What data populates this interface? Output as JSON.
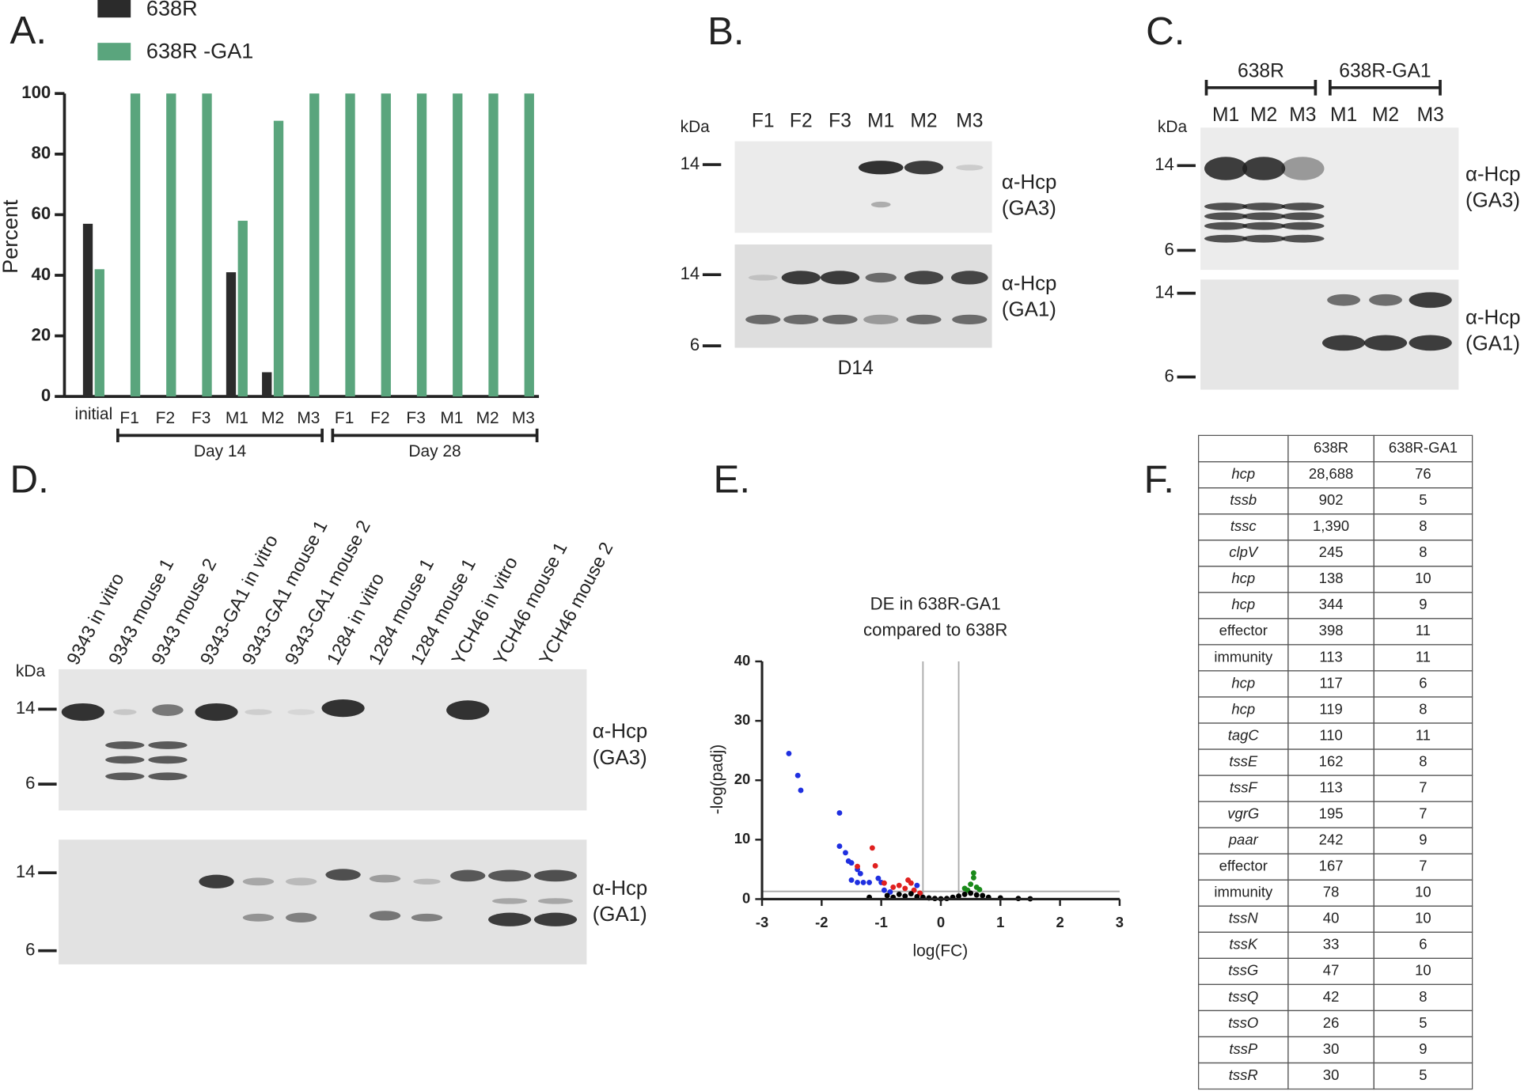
{
  "chart_data": [
    {
      "type": "bar",
      "label": "A.",
      "ylabel": "Percent",
      "categories": [
        "initial",
        "F1",
        "F2",
        "F3",
        "M1",
        "M2",
        "M3",
        "F1",
        "F2",
        "F3",
        "M1",
        "M2",
        "M3"
      ],
      "groups": [
        "Day 14",
        "Day 28"
      ],
      "series": [
        {
          "name": "638R",
          "color": "#2b2b2b",
          "values": [
            57,
            0,
            0,
            0,
            41,
            8,
            0,
            0,
            0,
            0,
            0,
            0,
            0
          ]
        },
        {
          "name": "638R -GA1",
          "color": "#5aa57d",
          "values": [
            42,
            100,
            100,
            100,
            58,
            91,
            100,
            100,
            100,
            100,
            100,
            100,
            100
          ]
        }
      ],
      "ylim": [
        0,
        100
      ],
      "yticks": [
        0,
        20,
        40,
        60,
        80,
        100
      ]
    },
    {
      "type": "scatter",
      "label": "E.",
      "title": "DE in 638R-GA1",
      "subtitle": "compared to 638R",
      "xlabel": "log(FC)",
      "ylabel": "-log(padj)",
      "xlim": [
        -3,
        3
      ],
      "ylim": [
        0,
        40
      ],
      "xticks": [
        -3,
        -2,
        -1,
        0,
        1,
        2,
        3
      ],
      "yticks": [
        0,
        10,
        20,
        30,
        40
      ],
      "vlines": [
        -0.3,
        0.3
      ],
      "hline": 1.3,
      "series": [
        {
          "color": "#1f2fe0",
          "x": [
            -2.55,
            -2.4,
            -2.35,
            -1.7,
            -1.7,
            -1.6,
            -1.55,
            -1.5,
            -1.4,
            -1.35,
            -1.5,
            -1.4,
            -1.3,
            -1.2,
            -1.05,
            -1.0,
            -0.95,
            -0.4,
            -0.85
          ],
          "y": [
            24.5,
            20.8,
            18.3,
            14.5,
            8.9,
            7.8,
            6.4,
            6.1,
            5,
            4.3,
            3.2,
            2.8,
            2.8,
            2.8,
            3.5,
            2.8,
            1.5,
            2.3,
            1.2
          ]
        },
        {
          "color": "#e0201f",
          "x": [
            -1.15,
            -1.1,
            -1.4,
            -0.95,
            -0.8,
            -0.7,
            -0.55,
            -0.5,
            -0.6,
            -0.45,
            -0.35
          ],
          "y": [
            8.6,
            5.6,
            5.5,
            2.7,
            2,
            2.3,
            3.2,
            2.7,
            1.8,
            1.5,
            1
          ]
        },
        {
          "color": "#1a8a1a",
          "x": [
            0.55,
            0.55,
            0.5,
            0.6,
            0.45,
            0.4,
            0.65
          ],
          "y": [
            4.4,
            3.6,
            2.5,
            2,
            1.5,
            1.8,
            1.6
          ]
        },
        {
          "color": "#000000",
          "x": [
            -1.2,
            -0.9,
            -0.8,
            -0.7,
            -0.6,
            -0.5,
            -0.4,
            -0.3,
            -0.2,
            -0.1,
            0,
            0.1,
            0.2,
            0.3,
            0.4,
            0.5,
            0.6,
            0.7,
            0.8,
            1.0,
            1.3,
            1.5
          ],
          "y": [
            0.3,
            0.6,
            0.3,
            0.8,
            0.5,
            0.9,
            0.4,
            0.3,
            0.2,
            0.1,
            0.05,
            0.1,
            0.3,
            0.5,
            0.8,
            1,
            0.7,
            0.6,
            0.3,
            0.2,
            0.1,
            0.05
          ]
        }
      ]
    }
  ],
  "blot_B": {
    "label": "B.",
    "kda": "kDa",
    "lanes": [
      "F1",
      "F2",
      "F3",
      "M1",
      "M2",
      "M3"
    ],
    "top": {
      "markers": [
        "14"
      ],
      "antibody": "α-Hcp",
      "target": "(GA3)"
    },
    "bottom": {
      "markers": [
        "14",
        "6"
      ],
      "antibody": "α-Hcp",
      "target": "(GA1)"
    },
    "caption": "D14"
  },
  "blot_C": {
    "label": "C.",
    "groups": [
      "638R",
      "638R-GA1"
    ],
    "kda": "kDa",
    "lanes": [
      "M1",
      "M2",
      "M3",
      "M1",
      "M2",
      "M3"
    ],
    "top": {
      "markers": [
        "14",
        "6"
      ],
      "antibody": "α-Hcp",
      "target": "(GA3)"
    },
    "bottom": {
      "markers": [
        "14",
        "6"
      ],
      "antibody": "α-Hcp",
      "target": "(GA1)"
    }
  },
  "blot_D": {
    "label": "D.",
    "kda": "kDa",
    "lanes": [
      "9343 in vitro",
      "9343 mouse 1",
      "9343 mouse 2",
      "9343-GA1 in vitro",
      "9343-GA1 mouse 1",
      "9343-GA1 mouse 2",
      "1284 in vitro",
      "1284 mouse 1",
      "1284 mouse 1",
      "YCH46 in vitro",
      "YCH46 mouse 1",
      "YCH46 mouse 2"
    ],
    "top": {
      "markers": [
        "14",
        "6"
      ],
      "antibody": "α-Hcp",
      "target": "(GA3)"
    },
    "bottom": {
      "markers": [
        "14",
        "6"
      ],
      "antibody": "α-Hcp",
      "target": "(GA1)"
    }
  },
  "table": {
    "label": "F.",
    "header": [
      "638R",
      "638R-GA1"
    ],
    "rows": [
      [
        "hcp",
        "28,688",
        "76"
      ],
      [
        "tssb",
        "902",
        "5"
      ],
      [
        "tssc",
        "1,390",
        "8"
      ],
      [
        "clpV",
        "245",
        "8"
      ],
      [
        "hcp",
        "138",
        "10"
      ],
      [
        "hcp",
        "344",
        "9"
      ],
      [
        "effector",
        "398",
        "11"
      ],
      [
        "immunity",
        "113",
        "11"
      ],
      [
        "hcp",
        "117",
        "6"
      ],
      [
        "hcp",
        "119",
        "8"
      ],
      [
        "tagC",
        "110",
        "11"
      ],
      [
        "tssE",
        "162",
        "8"
      ],
      [
        "tssF",
        "113",
        "7"
      ],
      [
        "vgrG",
        "195",
        "7"
      ],
      [
        "paar",
        "242",
        "9"
      ],
      [
        "effector",
        "167",
        "7"
      ],
      [
        "immunity",
        "78",
        "10"
      ],
      [
        "tssN",
        "40",
        "10"
      ],
      [
        "tssK",
        "33",
        "6"
      ],
      [
        "tssG",
        "47",
        "10"
      ],
      [
        "tssQ",
        "42",
        "8"
      ],
      [
        "tssO",
        "26",
        "5"
      ],
      [
        "tssP",
        "30",
        "9"
      ],
      [
        "tssR",
        "30",
        "5"
      ]
    ],
    "italic": [
      true,
      true,
      true,
      true,
      true,
      true,
      false,
      false,
      true,
      true,
      true,
      true,
      true,
      true,
      true,
      false,
      false,
      true,
      true,
      true,
      true,
      true,
      true,
      true
    ]
  }
}
